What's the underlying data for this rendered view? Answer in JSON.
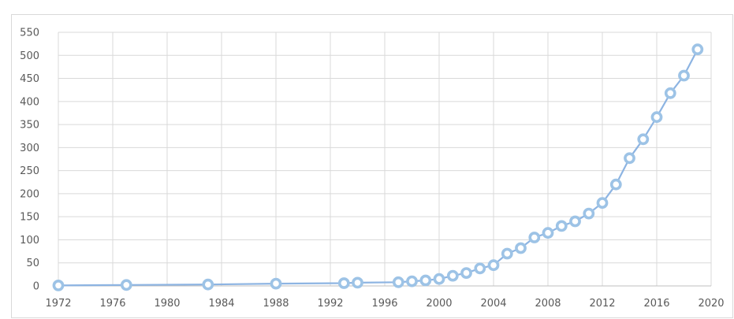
{
  "chart_data": {
    "type": "line",
    "title": "",
    "xlabel": "",
    "ylabel": "",
    "x_ticks": [
      "1972",
      "1976",
      "1980",
      "1984",
      "1988",
      "1992",
      "1996",
      "2000",
      "2004",
      "2008",
      "2012",
      "2016",
      "2020"
    ],
    "y_ticks": [
      "0",
      "50",
      "100",
      "150",
      "200",
      "250",
      "300",
      "350",
      "400",
      "450",
      "500",
      "550"
    ],
    "xlim": [
      1972,
      2020
    ],
    "ylim": [
      0,
      550
    ],
    "grid": true,
    "legend": "none",
    "colors": {
      "line": "#8db4e2",
      "marker_edge": "#9dc3e6",
      "marker_fill": "#ffffff",
      "grid": "#d9d9d9",
      "axis": "#bfbfbf",
      "text": "#595959"
    },
    "series": [
      {
        "x": [
          1972,
          1977,
          1983,
          1988,
          1993,
          1994,
          1997,
          1998,
          1999,
          2000,
          2001,
          2002,
          2003,
          2004,
          2005,
          2006,
          2007,
          2008,
          2009,
          2010,
          2011,
          2012,
          2013,
          2014,
          2015,
          2016,
          2017,
          2018,
          2019
        ],
        "y": [
          1,
          2,
          3,
          5,
          6,
          7,
          8,
          10,
          12,
          15,
          22,
          28,
          38,
          45,
          70,
          82,
          105,
          115,
          130,
          140,
          157,
          180,
          220,
          277,
          318,
          366,
          418,
          456,
          513
        ]
      }
    ]
  }
}
